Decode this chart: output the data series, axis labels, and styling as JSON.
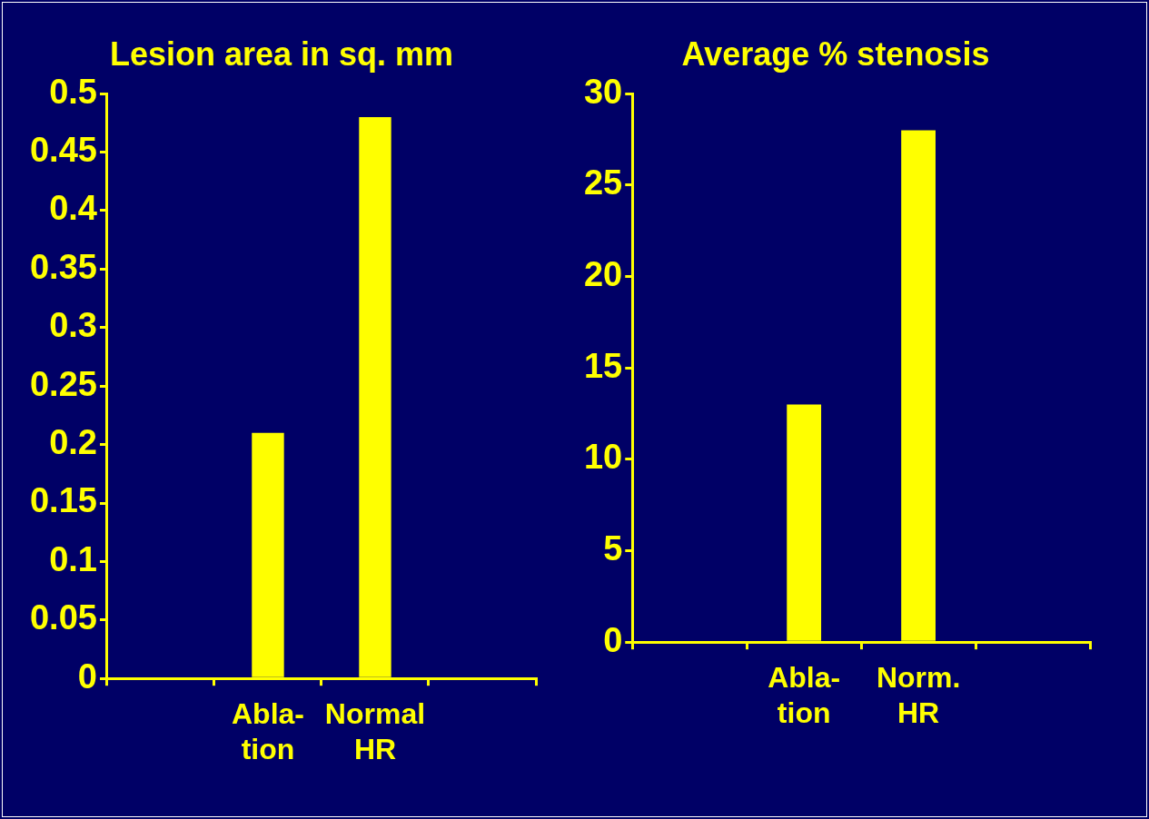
{
  "chart_data": [
    {
      "type": "bar",
      "title": "Lesion area in sq. mm",
      "categories": [
        null,
        "Abla-\ntion",
        "Normal\nHR",
        null
      ],
      "values": [
        null,
        0.21,
        0.48,
        null
      ],
      "color": "#ffff00",
      "ylim": [
        0,
        0.5
      ],
      "yticks": [
        0,
        0.05,
        0.1,
        0.15,
        0.2,
        0.25,
        0.3,
        0.35,
        0.4,
        0.45,
        0.5
      ],
      "grid": false,
      "legend": false
    },
    {
      "type": "bar",
      "title": "Average % stenosis",
      "categories": [
        null,
        "Abla-\ntion",
        "Norm.\nHR",
        null
      ],
      "values": [
        null,
        13,
        28,
        null
      ],
      "color": "#ffff00",
      "ylim": [
        0,
        30
      ],
      "yticks": [
        0,
        5,
        10,
        15,
        20,
        25,
        30
      ],
      "grid": false,
      "legend": false
    }
  ]
}
